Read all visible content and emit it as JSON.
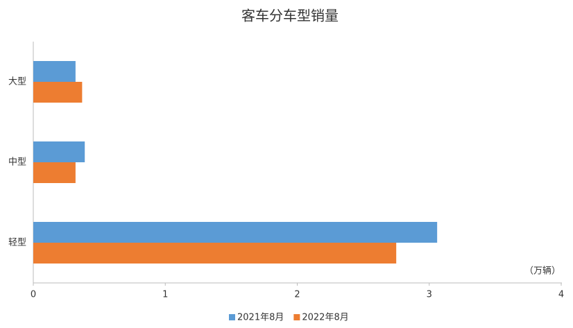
{
  "chart_data": {
    "type": "bar",
    "orientation": "horizontal",
    "title": "客车分车型销量",
    "unit_label": "（万辆）",
    "categories": [
      "大型",
      "中型",
      "轻型"
    ],
    "series": [
      {
        "name": "2021年8月",
        "color": "#5b9bd5",
        "values": [
          0.32,
          0.39,
          3.06
        ]
      },
      {
        "name": "2022年8月",
        "color": "#ed7d31",
        "values": [
          0.37,
          0.32,
          2.75
        ]
      }
    ],
    "xlim": [
      0,
      4
    ],
    "xticks": [
      0,
      1,
      2,
      3,
      4
    ],
    "grid": false,
    "legend": "bottom"
  }
}
